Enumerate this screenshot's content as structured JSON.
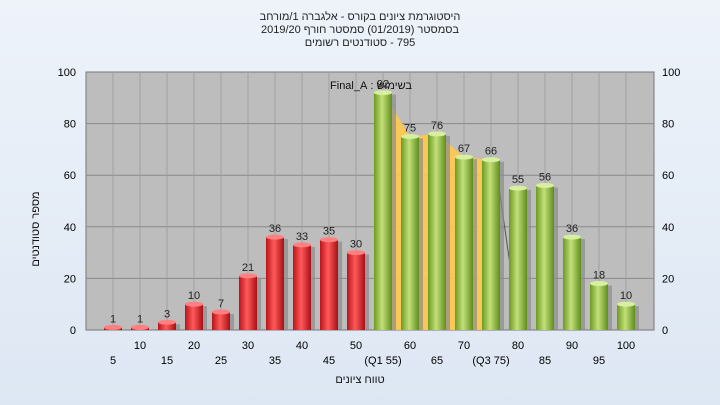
{
  "header": {
    "line1": "היסטוגרמת ציונים בקורס - אלגברה 1/מורחב",
    "line2": "בסמסטר  (01/2019)  סמסטר חורף 2019/20",
    "line3": "795 - סטודנטים רשומים"
  },
  "legend_label": "בשימוש : Final_A",
  "colors": {
    "low": "#e0262b",
    "high": "#8fbf3f",
    "band": "#ffc94a"
  },
  "chart_data": {
    "type": "bar",
    "title": "היסטוגרמת ציונים בקורס - אלגברה 1/מורחב",
    "xlabel": "טווח ציונים",
    "ylabel": "מספר סטודנטים",
    "ylim": [
      0,
      100
    ],
    "yticks": [
      0,
      20,
      40,
      60,
      80,
      100
    ],
    "categories": [
      "5",
      "10",
      "15",
      "20",
      "25",
      "30",
      "35",
      "40",
      "45",
      "50",
      "(Q1 55)",
      "60",
      "65",
      "70",
      "(Q3 75)",
      "80",
      "85",
      "90",
      "95",
      "100"
    ],
    "values": [
      1,
      1,
      3,
      10,
      7,
      21,
      36,
      33,
      35,
      30,
      92,
      75,
      76,
      67,
      66,
      55,
      56,
      36,
      18,
      10
    ],
    "colors_by_bar": [
      "low",
      "low",
      "low",
      "low",
      "low",
      "low",
      "low",
      "low",
      "low",
      "low",
      "high",
      "high",
      "high",
      "high",
      "high",
      "high",
      "high",
      "high",
      "high",
      "high"
    ],
    "band_categories": [
      "(Q1 55)",
      "(Q3 75)"
    ],
    "grid": true
  }
}
